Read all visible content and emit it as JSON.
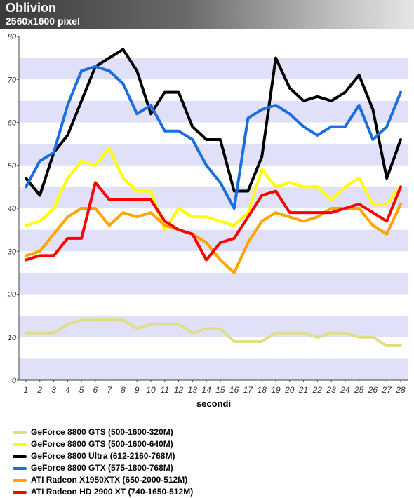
{
  "header": {
    "title": "Oblivion",
    "subtitle": "2560x1600 pixel"
  },
  "chart_data": {
    "type": "line",
    "title": "Oblivion",
    "subtitle": "2560x1600 pixel",
    "xlabel": "secondi",
    "ylabel": "",
    "x": [
      1,
      2,
      3,
      4,
      5,
      6,
      7,
      8,
      9,
      10,
      11,
      12,
      13,
      14,
      15,
      16,
      17,
      18,
      19,
      20,
      21,
      22,
      23,
      24,
      25,
      26,
      27,
      28
    ],
    "ylim": [
      0,
      80
    ],
    "yticks": [
      0,
      10,
      20,
      30,
      40,
      50,
      60,
      70,
      80
    ],
    "grid": "horizontal alternating bands",
    "legend": "bottom",
    "series": [
      {
        "name": "GeForce 8800 GTS (500-1600-320M)",
        "color": "#dede84",
        "values": [
          11,
          11,
          11,
          13,
          14,
          14,
          14,
          14,
          12,
          13,
          13,
          13,
          11,
          12,
          12,
          9,
          9,
          9,
          11,
          11,
          11,
          10,
          11,
          11,
          10,
          10,
          8,
          8
        ]
      },
      {
        "name": "GeForce 8800 GTS (500-1600-640M)",
        "color": "#ffff00",
        "values": [
          36,
          37,
          40,
          47,
          51,
          50,
          54,
          47,
          44,
          44,
          35,
          40,
          38,
          38,
          37,
          36,
          39,
          49,
          45,
          46,
          45,
          45,
          42,
          45,
          47,
          41,
          41,
          45
        ]
      },
      {
        "name": "GeForce 8800 Ultra (612-2160-768M)",
        "color": "#000000",
        "values": [
          47,
          43,
          53,
          57,
          65,
          73,
          75,
          77,
          72,
          62,
          67,
          67,
          59,
          56,
          56,
          44,
          44,
          52,
          75,
          68,
          65,
          66,
          65,
          67,
          71,
          63,
          47,
          56
        ]
      },
      {
        "name": "GeForce 8800 GTX (575-1800-768M)",
        "color": "#1a6fe0",
        "values": [
          45,
          51,
          53,
          64,
          72,
          73,
          72,
          69,
          62,
          64,
          58,
          58,
          56,
          50,
          46,
          40,
          61,
          63,
          64,
          62,
          59,
          57,
          59,
          59,
          64,
          56,
          59,
          67
        ]
      },
      {
        "name": "ATI Radeon X1950XTX (650-2000-512M)",
        "color": "#ffa500",
        "values": [
          29,
          30,
          34,
          38,
          40,
          40,
          36,
          39,
          38,
          39,
          36,
          35,
          34,
          32,
          28,
          25,
          32,
          37,
          39,
          38,
          37,
          38,
          40,
          40,
          40,
          36,
          34,
          41
        ]
      },
      {
        "name": "ATI Radeon HD 2900 XT  (740-1650-512M)",
        "color": "#ff0000",
        "values": [
          28,
          29,
          29,
          33,
          33,
          46,
          42,
          42,
          42,
          42,
          37,
          35,
          34,
          28,
          32,
          33,
          38,
          43,
          44,
          39,
          39,
          39,
          39,
          40,
          41,
          39,
          37,
          45
        ]
      }
    ]
  }
}
